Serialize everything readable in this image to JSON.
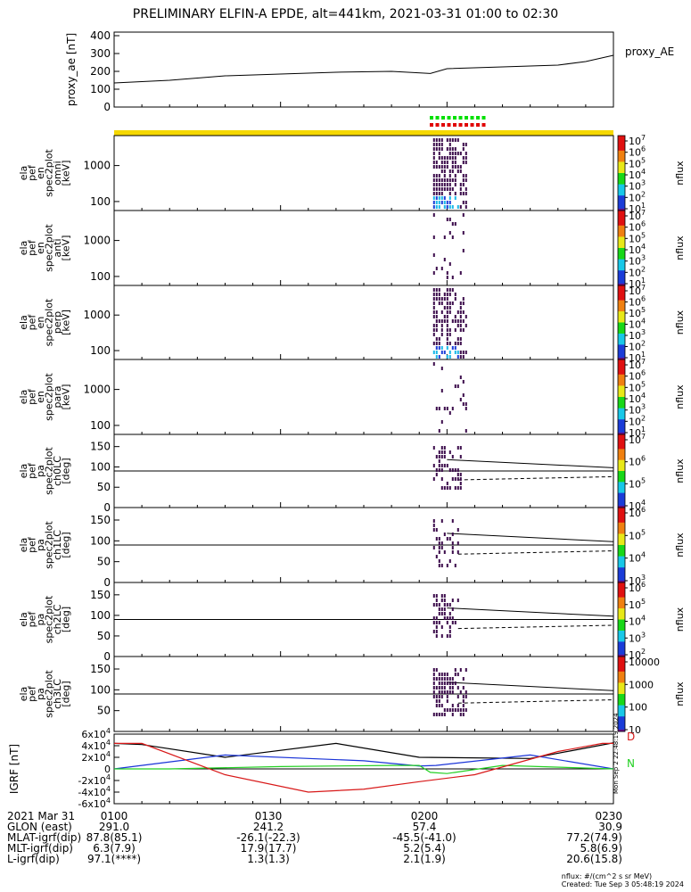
{
  "title": "PRELIMINARY ELFIN-A EPDE, alt=441km, 2021-03-31 01:00 to 02:30",
  "colors": {
    "axis": "#000000",
    "fgm_top_bar": "#f5d800",
    "sci_green": "#00e000",
    "sci_red": "#e00000",
    "igrf_black": "#000000",
    "igrf_blue": "#1a34d8",
    "igrf_green": "#22d022",
    "igrf_red": "#d81818"
  },
  "chart_data": [
    {
      "type": "line",
      "panel": "proxy_ae",
      "ylabel": "proxy_ae [nT]",
      "legend": "proxy_AE",
      "yticks": [
        "400",
        "300",
        "200",
        "100",
        "0"
      ],
      "ylim": [
        0,
        420
      ],
      "x_minutes": [
        0,
        10,
        20,
        30,
        40,
        50,
        57,
        60,
        70,
        80,
        85,
        90
      ],
      "y": [
        135,
        150,
        175,
        185,
        195,
        200,
        188,
        215,
        225,
        235,
        255,
        290
      ]
    },
    {
      "type": "heatmap",
      "panel": "ela_pef_en_spec2plot_omni",
      "ylabel": "ela pef en spec2plot omni [keV]",
      "yticks": [
        "1000",
        "100"
      ],
      "colorbar_label": "nflux",
      "colorbar_ticks": [
        "10^7",
        "10^6",
        "10^5",
        "10^4",
        "10^3",
        "10^2",
        "10^1"
      ],
      "active_x_minutes": [
        57.5,
        63.5
      ]
    },
    {
      "type": "heatmap",
      "panel": "ela_pef_en_spec2plot_anti",
      "ylabel": "ela pef en spec2plot anti [keV]",
      "yticks": [
        "1000",
        "100"
      ],
      "colorbar_label": "nflux",
      "colorbar_ticks": [
        "10^7",
        "10^6",
        "10^5",
        "10^4",
        "10^3",
        "10^2",
        "10^1"
      ],
      "active_x_minutes": [
        57.5,
        63.5
      ]
    },
    {
      "type": "heatmap",
      "panel": "ela_pef_en_spec2plot_perp",
      "ylabel": "ela pef en spec2plot perp [keV]",
      "yticks": [
        "1000",
        "100"
      ],
      "colorbar_label": "nflux",
      "colorbar_ticks": [
        "10^7",
        "10^6",
        "10^5",
        "10^4",
        "10^3",
        "10^2",
        "10^1"
      ],
      "active_x_minutes": [
        57.5,
        63.5
      ]
    },
    {
      "type": "heatmap",
      "panel": "ela_pef_en_spec2plot_para",
      "ylabel": "ela pef en spec2plot para [keV]",
      "yticks": [
        "1000",
        "100"
      ],
      "colorbar_label": "nflux",
      "colorbar_ticks": [
        "10^7",
        "10^6",
        "10^5",
        "10^4",
        "10^3",
        "10^2",
        "10^1"
      ],
      "active_x_minutes": [
        57.5,
        63.5
      ]
    },
    {
      "type": "heatmap",
      "panel": "ela_pef_pa_spec2plot_ch0LC",
      "ylabel": "ela pef pa spec2plot ch0LC [deg]",
      "yticks": [
        "150",
        "100",
        "50",
        "0"
      ],
      "colorbar_label": "nflux",
      "colorbar_ticks": [
        "10^7",
        "10^6",
        "10^5",
        "10^4"
      ],
      "active_x_minutes": [
        57.5,
        62.5
      ]
    },
    {
      "type": "heatmap",
      "panel": "ela_pef_pa_spec2plot_ch1LC",
      "ylabel": "ela pef pa spec2plot ch1LC [deg]",
      "yticks": [
        "150",
        "100",
        "50",
        "0"
      ],
      "colorbar_label": "nflux",
      "colorbar_ticks": [
        "10^6",
        "10^5",
        "10^4",
        "10^3"
      ],
      "active_x_minutes": [
        57.5,
        62.0
      ]
    },
    {
      "type": "heatmap",
      "panel": "ela_pef_pa_spec2plot_ch2LC",
      "ylabel": "ela pef pa spec2plot ch2LC [deg]",
      "yticks": [
        "150",
        "100",
        "50",
        "0"
      ],
      "colorbar_label": "nflux",
      "colorbar_ticks": [
        "10^6",
        "10^5",
        "10^4",
        "10^3",
        "10^2"
      ],
      "active_x_minutes": [
        57.5,
        62.0
      ]
    },
    {
      "type": "heatmap",
      "panel": "ela_pef_pa_spec2plot_ch3LC",
      "ylabel": "ela pef pa spec2plot ch3LC [deg]",
      "yticks": [
        "150",
        "100",
        "50"
      ],
      "colorbar_label": "nflux",
      "colorbar_ticks": [
        "10000",
        "1000",
        "100",
        "10"
      ],
      "active_x_minutes": [
        57.5,
        63.5
      ]
    },
    {
      "type": "line",
      "panel": "IGRF",
      "ylabel": "IGRF [nT]",
      "yticks": [
        "6x10^4",
        "4x10^4",
        "2x10^4",
        "0",
        "-2x10^4",
        "-4x10^4",
        "-6x10^4"
      ],
      "ylim": [
        -60000,
        60000
      ],
      "legend": [
        "D",
        "N"
      ],
      "series": [
        {
          "name": "black",
          "x_minutes": [
            0,
            5,
            20,
            40,
            55,
            75,
            85,
            90
          ],
          "values": [
            44000,
            42000,
            20000,
            44000,
            20000,
            18000,
            36000,
            45000
          ]
        },
        {
          "name": "blue",
          "x_minutes": [
            0,
            20,
            45,
            55,
            58,
            75,
            90
          ],
          "values": [
            0,
            24000,
            14000,
            5000,
            6000,
            24000,
            0
          ]
        },
        {
          "name": "green",
          "x_minutes": [
            0,
            10,
            30,
            50,
            55,
            57,
            60,
            70,
            90
          ],
          "values": [
            0,
            0,
            4000,
            6000,
            6000,
            -6000,
            -8000,
            6000,
            0
          ]
        },
        {
          "name": "red",
          "x_minutes": [
            0,
            5,
            20,
            35,
            45,
            55,
            65,
            80,
            88,
            90
          ],
          "values": [
            44000,
            44000,
            -10000,
            -40000,
            -35000,
            -22000,
            -10000,
            30000,
            44000,
            44000
          ]
        }
      ]
    }
  ],
  "footer": {
    "rows": [
      {
        "label": "2021 Mar 31",
        "values": [
          "0100",
          "0130",
          "0200",
          "0230"
        ]
      },
      {
        "label": "GLON (east)",
        "values": [
          "291.0",
          "241.2",
          "57.4",
          "30.9"
        ]
      },
      {
        "label": "MLAT-igrf(dip)",
        "values": [
          "87.8(85.1)",
          "-26.1(-22.3)",
          "-45.5(-41.0)",
          "77.2(74.9)"
        ]
      },
      {
        "label": "MLT-igrf(dip)",
        "values": [
          "6.3(7.9)",
          "17.9(17.7)",
          "5.2(5.4)",
          "5.8(6.9)"
        ]
      },
      {
        "label": "L-igrf(dip)",
        "values": [
          "97.1(****)",
          "1.3(1.3)",
          "2.1(1.9)",
          "20.6(15.8)"
        ]
      }
    ],
    "units_note": "nflux: #/(cm^2 s sr MeV)",
    "created": "Created: Tue Sep  3 05:48:19 2024",
    "side_stamp": "Mon Sep  2 22:48:19 2024"
  }
}
